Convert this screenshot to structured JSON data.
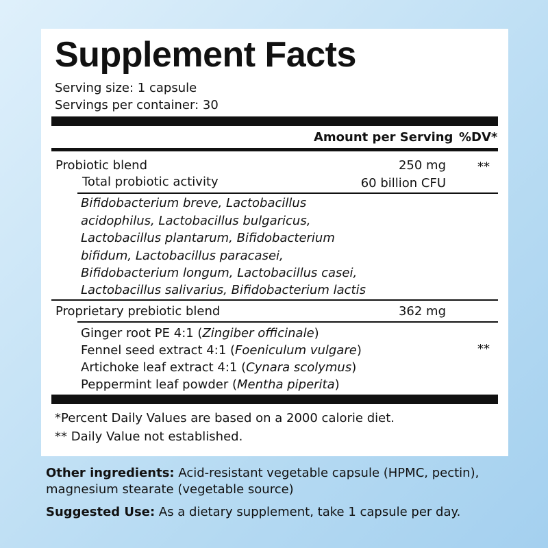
{
  "title": "Supplement Facts",
  "serving_size": "Serving size: 1 capsule",
  "servings_per_container": "Servings per container: 30",
  "header": {
    "amount": "Amount per Serving",
    "dv": "%DV*"
  },
  "probiotic": {
    "name": "Probiotic blend",
    "amount": "250 mg",
    "dv": "**",
    "activity_label": "Total probiotic activity",
    "activity_value": "60 billion CFU",
    "strains": [
      "Bifidobacterium breve, Lactobacillus",
      "acidophilus, Lactobacillus bulgaricus,",
      "Lactobacillus plantarum, Bifidobacterium",
      "bifidum, Lactobacillus paracasei,",
      "Bifidobacterium longum, Lactobacillus casei,",
      "Lactobacillus salivarius, Bifidobacterium lactis"
    ]
  },
  "prebiotic": {
    "name": "Proprietary prebiotic blend",
    "amount": "362 mg",
    "dv": "**",
    "ingredients": [
      {
        "name": "Ginger root PE 4:1 (",
        "latin": "Zingiber officinale",
        "close": ")"
      },
      {
        "name": "Fennel seed extract 4:1 (",
        "latin": "Foeniculum vulgare",
        "close": ")"
      },
      {
        "name": "Artichoke leaf extract 4:1 (",
        "latin": "Cynara scolymus",
        "close": ")"
      },
      {
        "name": "Peppermint leaf powder (",
        "latin": "Mentha piperita",
        "close": ")"
      }
    ]
  },
  "footnotes": [
    "*Percent Daily Values are based on a 2000 calorie diet.",
    "** Daily Value not established."
  ],
  "other_ingredients": {
    "label": "Other ingredients:",
    "text_line1": " Acid-resistant vegetable capsule (HPMC, pectin),",
    "text_line2": "magnesium stearate (vegetable source)"
  },
  "suggested_use": {
    "label": "Suggested Use:",
    "text": " As a dietary supplement, take 1 capsule per day."
  }
}
